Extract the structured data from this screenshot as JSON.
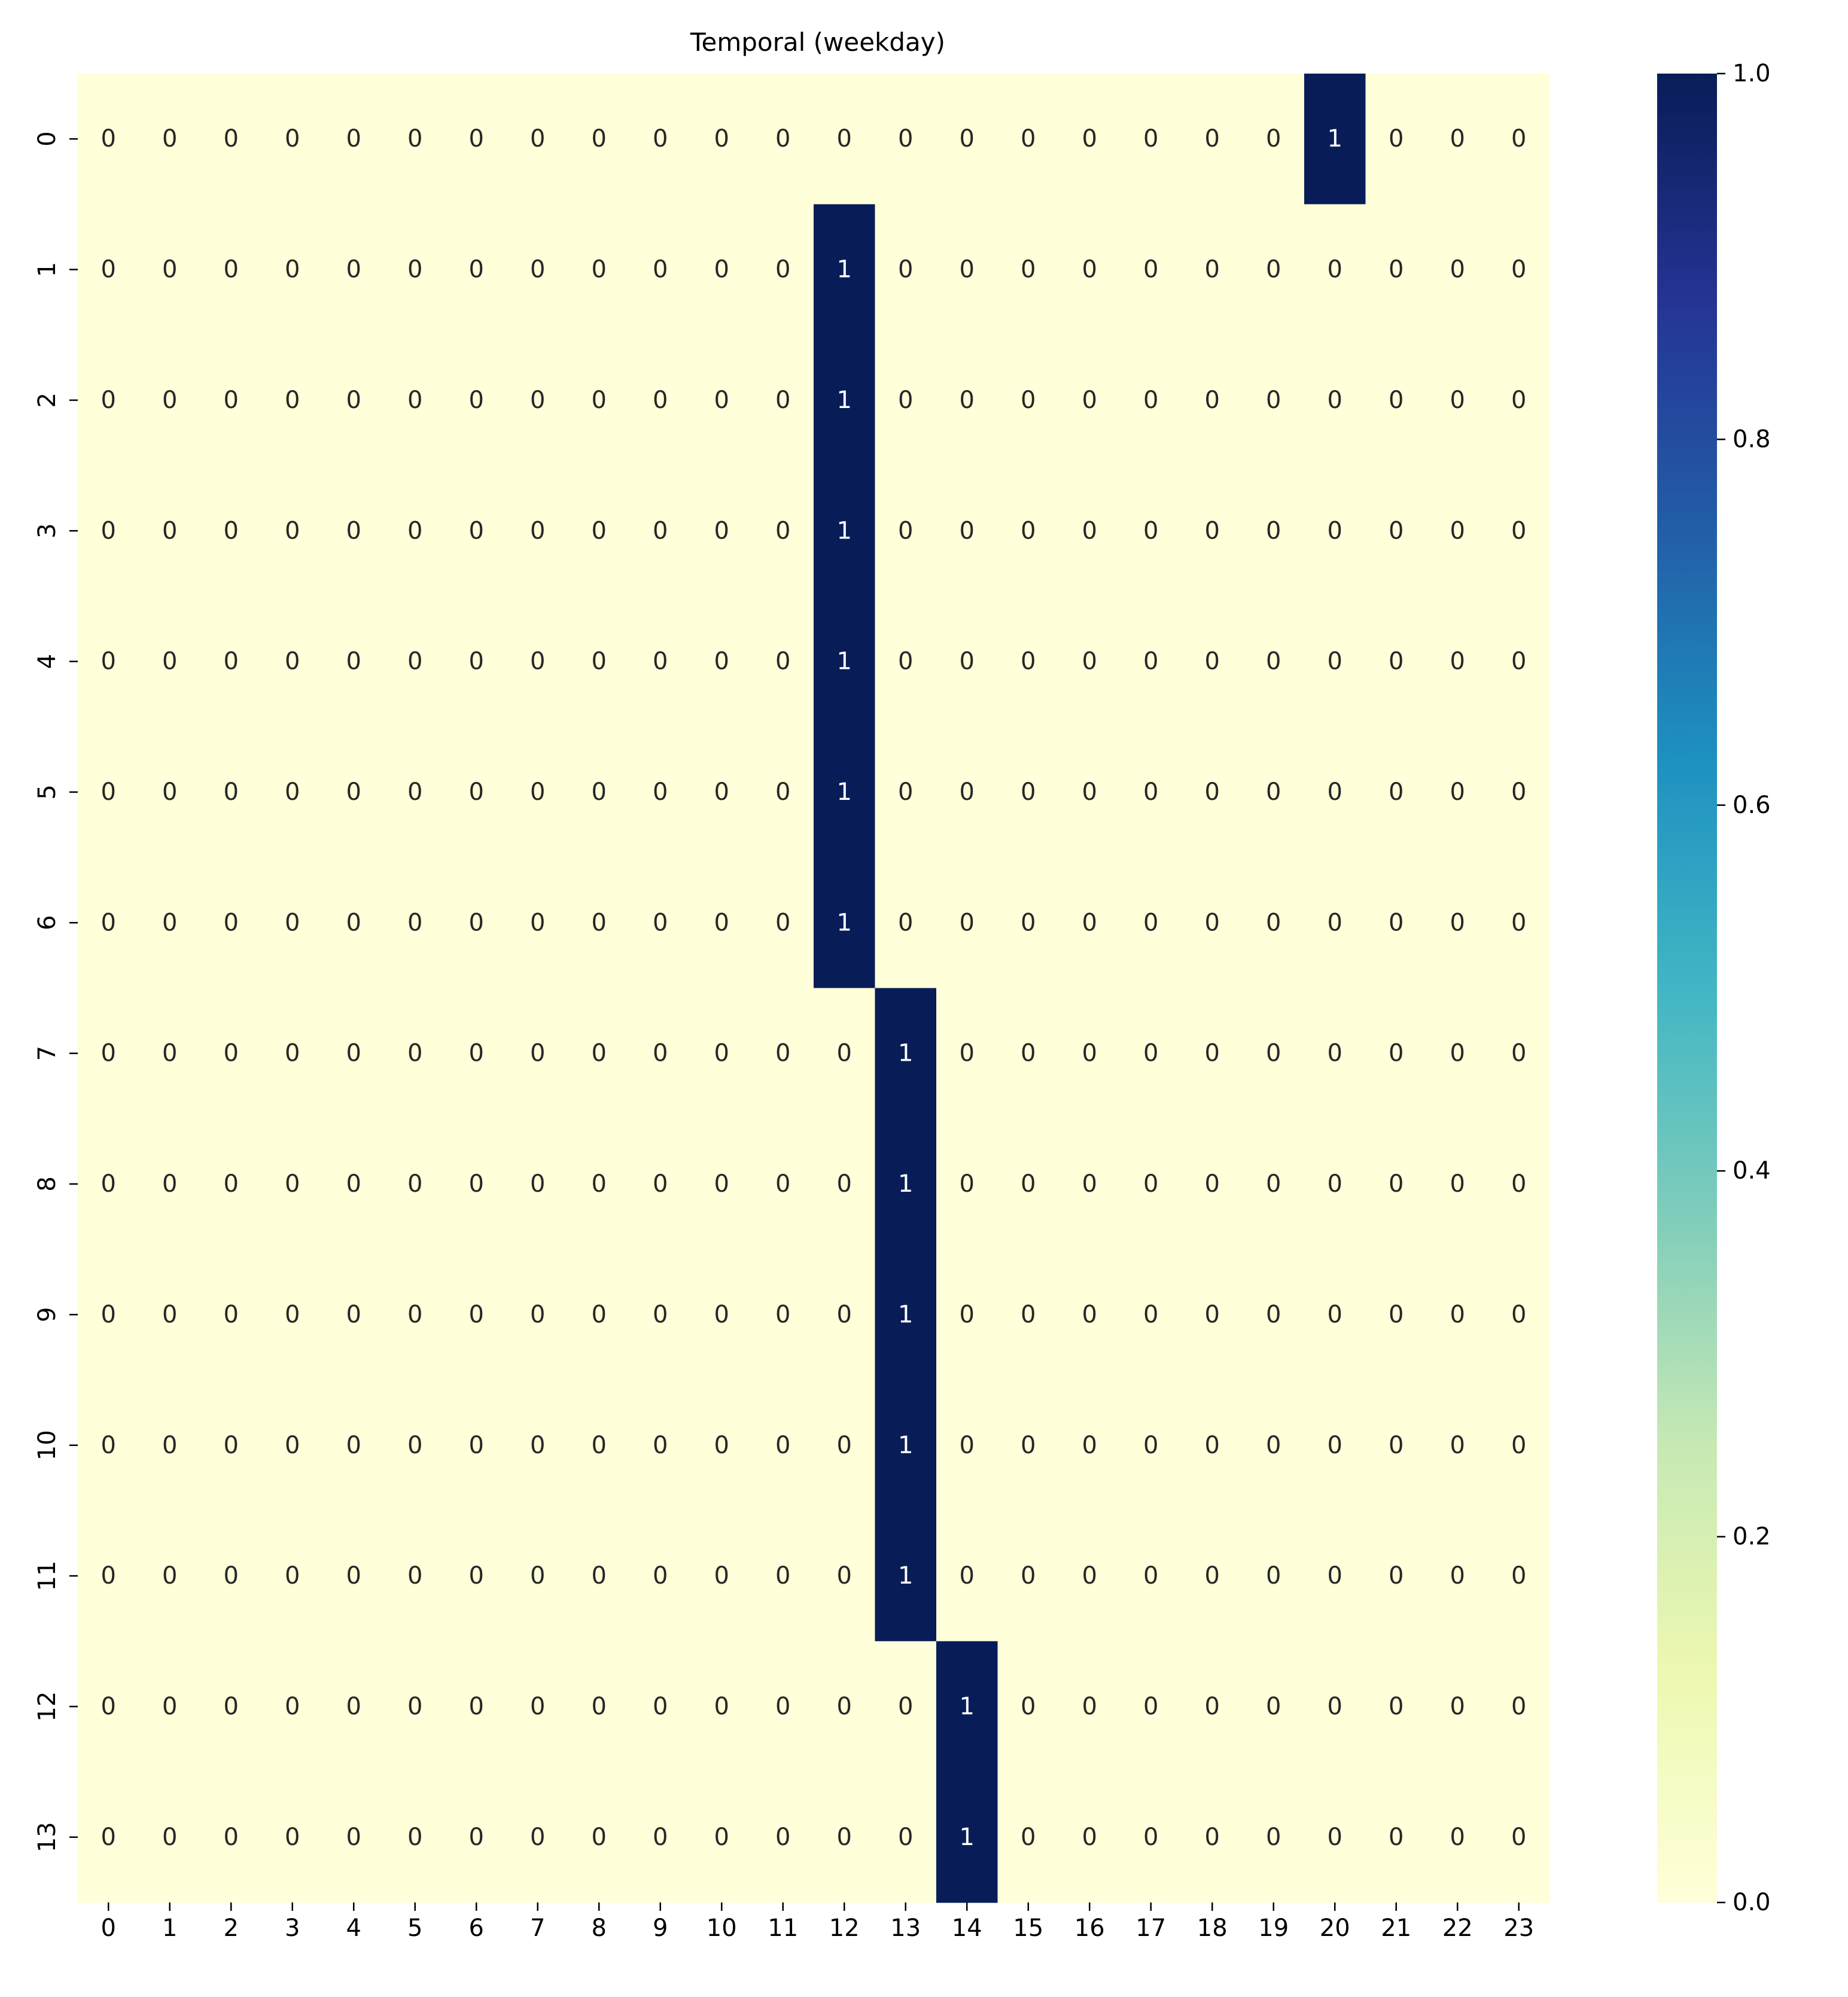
{
  "chart_data": {
    "type": "heatmap",
    "title": "Temporal (weekday)",
    "xlabel": "",
    "ylabel": "",
    "x_categories": [
      "0",
      "1",
      "2",
      "3",
      "4",
      "5",
      "6",
      "7",
      "8",
      "9",
      "10",
      "11",
      "12",
      "13",
      "14",
      "15",
      "16",
      "17",
      "18",
      "19",
      "20",
      "21",
      "22",
      "23"
    ],
    "y_categories": [
      "0",
      "1",
      "2",
      "3",
      "4",
      "5",
      "6",
      "7",
      "8",
      "9",
      "10",
      "11",
      "12",
      "13"
    ],
    "values": [
      [
        0,
        0,
        0,
        0,
        0,
        0,
        0,
        0,
        0,
        0,
        0,
        0,
        0,
        0,
        0,
        0,
        0,
        0,
        0,
        0,
        1,
        0,
        0,
        0
      ],
      [
        0,
        0,
        0,
        0,
        0,
        0,
        0,
        0,
        0,
        0,
        0,
        0,
        1,
        0,
        0,
        0,
        0,
        0,
        0,
        0,
        0,
        0,
        0,
        0
      ],
      [
        0,
        0,
        0,
        0,
        0,
        0,
        0,
        0,
        0,
        0,
        0,
        0,
        1,
        0,
        0,
        0,
        0,
        0,
        0,
        0,
        0,
        0,
        0,
        0
      ],
      [
        0,
        0,
        0,
        0,
        0,
        0,
        0,
        0,
        0,
        0,
        0,
        0,
        1,
        0,
        0,
        0,
        0,
        0,
        0,
        0,
        0,
        0,
        0,
        0
      ],
      [
        0,
        0,
        0,
        0,
        0,
        0,
        0,
        0,
        0,
        0,
        0,
        0,
        1,
        0,
        0,
        0,
        0,
        0,
        0,
        0,
        0,
        0,
        0,
        0
      ],
      [
        0,
        0,
        0,
        0,
        0,
        0,
        0,
        0,
        0,
        0,
        0,
        0,
        1,
        0,
        0,
        0,
        0,
        0,
        0,
        0,
        0,
        0,
        0,
        0
      ],
      [
        0,
        0,
        0,
        0,
        0,
        0,
        0,
        0,
        0,
        0,
        0,
        0,
        1,
        0,
        0,
        0,
        0,
        0,
        0,
        0,
        0,
        0,
        0,
        0
      ],
      [
        0,
        0,
        0,
        0,
        0,
        0,
        0,
        0,
        0,
        0,
        0,
        0,
        0,
        1,
        0,
        0,
        0,
        0,
        0,
        0,
        0,
        0,
        0,
        0
      ],
      [
        0,
        0,
        0,
        0,
        0,
        0,
        0,
        0,
        0,
        0,
        0,
        0,
        0,
        1,
        0,
        0,
        0,
        0,
        0,
        0,
        0,
        0,
        0,
        0
      ],
      [
        0,
        0,
        0,
        0,
        0,
        0,
        0,
        0,
        0,
        0,
        0,
        0,
        0,
        1,
        0,
        0,
        0,
        0,
        0,
        0,
        0,
        0,
        0,
        0
      ],
      [
        0,
        0,
        0,
        0,
        0,
        0,
        0,
        0,
        0,
        0,
        0,
        0,
        0,
        1,
        0,
        0,
        0,
        0,
        0,
        0,
        0,
        0,
        0,
        0
      ],
      [
        0,
        0,
        0,
        0,
        0,
        0,
        0,
        0,
        0,
        0,
        0,
        0,
        0,
        1,
        0,
        0,
        0,
        0,
        0,
        0,
        0,
        0,
        0,
        0
      ],
      [
        0,
        0,
        0,
        0,
        0,
        0,
        0,
        0,
        0,
        0,
        0,
        0,
        0,
        0,
        1,
        0,
        0,
        0,
        0,
        0,
        0,
        0,
        0,
        0
      ],
      [
        0,
        0,
        0,
        0,
        0,
        0,
        0,
        0,
        0,
        0,
        0,
        0,
        0,
        0,
        1,
        0,
        0,
        0,
        0,
        0,
        0,
        0,
        0,
        0
      ]
    ],
    "value_range": [
      0,
      1
    ],
    "colorbar": {
      "ticks": [
        0.0,
        0.2,
        0.4,
        0.6,
        0.8,
        1.0
      ],
      "tick_labels": [
        "0.0",
        "0.2",
        "0.4",
        "0.6",
        "0.8",
        "1.0"
      ],
      "colormap": "YlGnBu",
      "colors": [
        "#ffffd9",
        "#edf8b1",
        "#c7e9b4",
        "#7fcdbb",
        "#41b6c4",
        "#1d91c0",
        "#225ea8",
        "#253494",
        "#081d58"
      ]
    },
    "annotate_cells": true,
    "grid": false
  }
}
